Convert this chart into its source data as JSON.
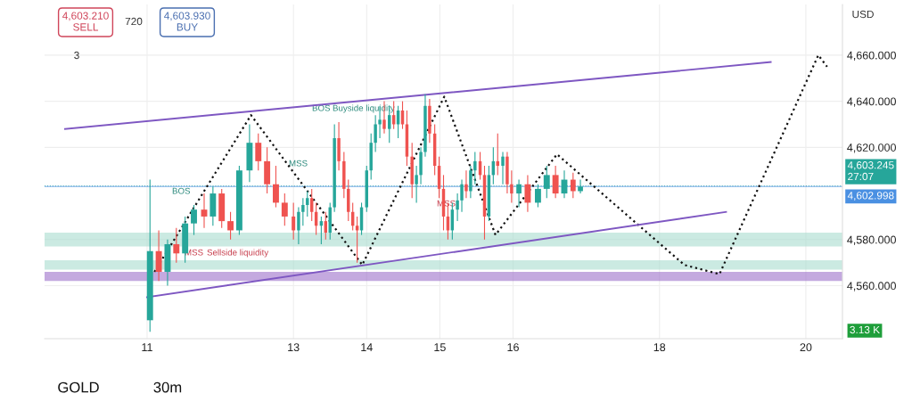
{
  "chart_data": {
    "type": "candlestick",
    "x": [
      11.04,
      11.16,
      11.28,
      11.4,
      11.52,
      11.64,
      11.78,
      11.9,
      12.02,
      12.14,
      12.26,
      12.4,
      12.52,
      12.64,
      12.76,
      12.88,
      13.0,
      13.07,
      13.13,
      13.19,
      13.25,
      13.31,
      13.38,
      13.44,
      13.5,
      13.56,
      13.62,
      13.69,
      13.75,
      13.81,
      13.87,
      13.93,
      14.0,
      14.06,
      14.12,
      14.18,
      14.24,
      14.31,
      14.37,
      14.43,
      14.49,
      14.55,
      14.62,
      14.68,
      14.74,
      14.8,
      14.86,
      14.93,
      14.99,
      15.05,
      15.11,
      15.17,
      15.24,
      15.3,
      15.36,
      15.42,
      15.48,
      15.55,
      15.61,
      15.67,
      15.73,
      15.79,
      15.86,
      15.92,
      15.98,
      16.08,
      16.2,
      16.34,
      16.46,
      16.58,
      16.7,
      16.82,
      16.92
    ],
    "ohlc": [
      [
        4545,
        4606,
        4540,
        4575
      ],
      [
        4575,
        4584,
        4562,
        4566
      ],
      [
        4566,
        4580,
        4560,
        4578
      ],
      [
        4578,
        4585,
        4570,
        4574
      ],
      [
        4574,
        4590,
        4570,
        4587
      ],
      [
        4587,
        4595,
        4582,
        4593
      ],
      [
        4593,
        4600,
        4585,
        4590
      ],
      [
        4590,
        4603,
        4586,
        4600
      ],
      [
        4600,
        4602,
        4585,
        4588
      ],
      [
        4588,
        4592,
        4580,
        4584
      ],
      [
        4584,
        4612,
        4582,
        4610
      ],
      [
        4610,
        4630,
        4605,
        4622
      ],
      [
        4622,
        4626,
        4610,
        4614
      ],
      [
        4614,
        4620,
        4600,
        4604
      ],
      [
        4604,
        4612,
        4594,
        4596
      ],
      [
        4596,
        4600,
        4586,
        4590
      ],
      [
        4590,
        4596,
        4580,
        4584
      ],
      [
        4584,
        4594,
        4578,
        4592
      ],
      [
        4592,
        4598,
        4586,
        4595
      ],
      [
        4595,
        4601,
        4590,
        4598
      ],
      [
        4598,
        4602,
        4588,
        4592
      ],
      [
        4592,
        4596,
        4582,
        4586
      ],
      [
        4586,
        4590,
        4578,
        4588
      ],
      [
        4588,
        4592,
        4580,
        4583
      ],
      [
        4583,
        4596,
        4580,
        4594
      ],
      [
        4594,
        4630,
        4592,
        4624
      ],
      [
        4624,
        4631,
        4610,
        4614
      ],
      [
        4614,
        4618,
        4598,
        4602
      ],
      [
        4602,
        4606,
        4588,
        4592
      ],
      [
        4592,
        4596,
        4584,
        4586
      ],
      [
        4586,
        4590,
        4570,
        4584
      ],
      [
        4584,
        4596,
        4582,
        4594
      ],
      [
        4594,
        4612,
        4592,
        4610
      ],
      [
        4610,
        4626,
        4606,
        4622
      ],
      [
        4622,
        4634,
        4618,
        4630
      ],
      [
        4630,
        4638,
        4624,
        4632
      ],
      [
        4632,
        4640,
        4626,
        4628
      ],
      [
        4628,
        4638,
        4622,
        4634
      ],
      [
        4634,
        4640,
        4628,
        4630
      ],
      [
        4630,
        4638,
        4624,
        4636
      ],
      [
        4636,
        4640,
        4628,
        4630
      ],
      [
        4630,
        4636,
        4612,
        4616
      ],
      [
        4616,
        4622,
        4598,
        4604
      ],
      [
        4604,
        4612,
        4596,
        4608
      ],
      [
        4608,
        4620,
        4604,
        4618
      ],
      [
        4618,
        4643,
        4616,
        4638
      ],
      [
        4638,
        4641,
        4622,
        4626
      ],
      [
        4626,
        4630,
        4608,
        4612
      ],
      [
        4612,
        4616,
        4598,
        4602
      ],
      [
        4602,
        4608,
        4584,
        4590
      ],
      [
        4590,
        4596,
        4580,
        4584
      ],
      [
        4584,
        4596,
        4580,
        4593
      ],
      [
        4593,
        4600,
        4588,
        4597
      ],
      [
        4597,
        4606,
        4592,
        4604
      ],
      [
        4604,
        4610,
        4598,
        4601
      ],
      [
        4601,
        4612,
        4598,
        4610
      ],
      [
        4610,
        4618,
        4604,
        4614
      ],
      [
        4614,
        4618,
        4606,
        4608
      ],
      [
        4608,
        4612,
        4580,
        4590
      ],
      [
        4590,
        4612,
        4588,
        4608
      ],
      [
        4608,
        4620,
        4604,
        4614
      ],
      [
        4614,
        4626,
        4608,
        4612
      ],
      [
        4612,
        4618,
        4604,
        4616
      ],
      [
        4616,
        4618,
        4600,
        4604
      ],
      [
        4604,
        4610,
        4596,
        4600
      ],
      [
        4600,
        4606,
        4594,
        4604
      ],
      [
        4604,
        4608,
        4592,
        4596
      ],
      [
        4596,
        4604,
        4594,
        4602
      ],
      [
        4602,
        4612,
        4598,
        4608
      ],
      [
        4608,
        4612,
        4598,
        4600
      ],
      [
        4600,
        4610,
        4598,
        4606
      ],
      [
        4606,
        4609,
        4598,
        4601
      ],
      [
        4601,
        4606,
        4600,
        4603
      ]
    ],
    "colors": [
      "#26a69a",
      "#ef5350",
      "#26a69a",
      "#ef5350",
      "#26a69a",
      "#26a69a",
      "#ef5350",
      "#26a69a",
      "#ef5350",
      "#ef5350",
      "#26a69a",
      "#26a69a",
      "#ef5350",
      "#ef5350",
      "#ef5350",
      "#ef5350",
      "#ef5350",
      "#26a69a",
      "#26a69a",
      "#26a69a",
      "#ef5350",
      "#ef5350",
      "#26a69a",
      "#ef5350",
      "#26a69a",
      "#26a69a",
      "#ef5350",
      "#ef5350",
      "#ef5350",
      "#ef5350",
      "#ef5350",
      "#26a69a",
      "#26a69a",
      "#26a69a",
      "#26a69a",
      "#26a69a",
      "#ef5350",
      "#26a69a",
      "#ef5350",
      "#26a69a",
      "#ef5350",
      "#ef5350",
      "#ef5350",
      "#26a69a",
      "#26a69a",
      "#26a69a",
      "#ef5350",
      "#ef5350",
      "#ef5350",
      "#ef5350",
      "#ef5350",
      "#26a69a",
      "#26a69a",
      "#26a69a",
      "#ef5350",
      "#26a69a",
      "#26a69a",
      "#ef5350",
      "#ef5350",
      "#26a69a",
      "#26a69a",
      "#ef5350",
      "#26a69a",
      "#ef5350",
      "#ef5350",
      "#26a69a",
      "#ef5350",
      "#26a69a",
      "#26a69a",
      "#ef5350",
      "#26a69a",
      "#ef5350",
      "#26a69a"
    ],
    "series": [
      {
        "type": "line",
        "color": "#111111",
        "line_style": "dotted",
        "x": [
          11.1,
          12.42,
          13.94,
          15.06,
          15.76,
          16.6,
          18.34,
          18.82,
          20.17,
          20.29
        ],
        "values": [
          4566,
          4634,
          4569,
          4642,
          4582,
          4617,
          4569,
          4565,
          4660,
          4655
        ]
      },
      {
        "type": "line",
        "color": "#7e57c2",
        "line_style": "solid",
        "x": [
          9.88,
          19.52
        ],
        "values": [
          4628,
          4657
        ]
      },
      {
        "type": "line",
        "color": "#7e57c2",
        "line_style": "solid",
        "x": [
          11.0,
          18.91
        ],
        "values": [
          4555,
          4592
        ]
      }
    ],
    "bands": [
      {
        "axis": "y",
        "from": 4577,
        "to": 4583,
        "color": "#a8dccf"
      },
      {
        "axis": "y",
        "from": 4567,
        "to": 4571,
        "color": "#a8dccf"
      },
      {
        "axis": "y",
        "from": 4562,
        "to": 4566,
        "color": "#9c6fc9"
      }
    ],
    "ref_lines": [
      {
        "axis": "y",
        "value": 4603.245,
        "label": "4,603.245\n27:07",
        "color": "#26a69a",
        "line_style": "dotted"
      },
      {
        "axis": "y",
        "value": 4602.998,
        "label": "4,602.998",
        "color": "#4a90e2"
      }
    ],
    "annotations": [
      "BOS",
      "MSS",
      "BOS",
      "Buyside liquidity",
      "MSS",
      "Sellside liquidity",
      "MSS",
      "4,603.210\nSELL",
      "720",
      "4,603.930\nBUY",
      "3",
      "USD",
      "GOLD",
      "30m",
      "3.13 K"
    ],
    "xlim": [
      9.6,
      20.5
    ],
    "ylim": [
      4537,
      4682
    ],
    "xticks": [
      11,
      13,
      14,
      15,
      16,
      18,
      20
    ],
    "yticks": [
      {
        "value": 4560,
        "label": "4,560.000"
      },
      {
        "value": 4580,
        "label": "4,580.000"
      },
      {
        "value": 4620,
        "label": "4,620.000"
      },
      {
        "value": 4640,
        "label": "4,640.000"
      },
      {
        "value": 4660,
        "label": "4,660.000"
      }
    ],
    "grid": true
  }
}
